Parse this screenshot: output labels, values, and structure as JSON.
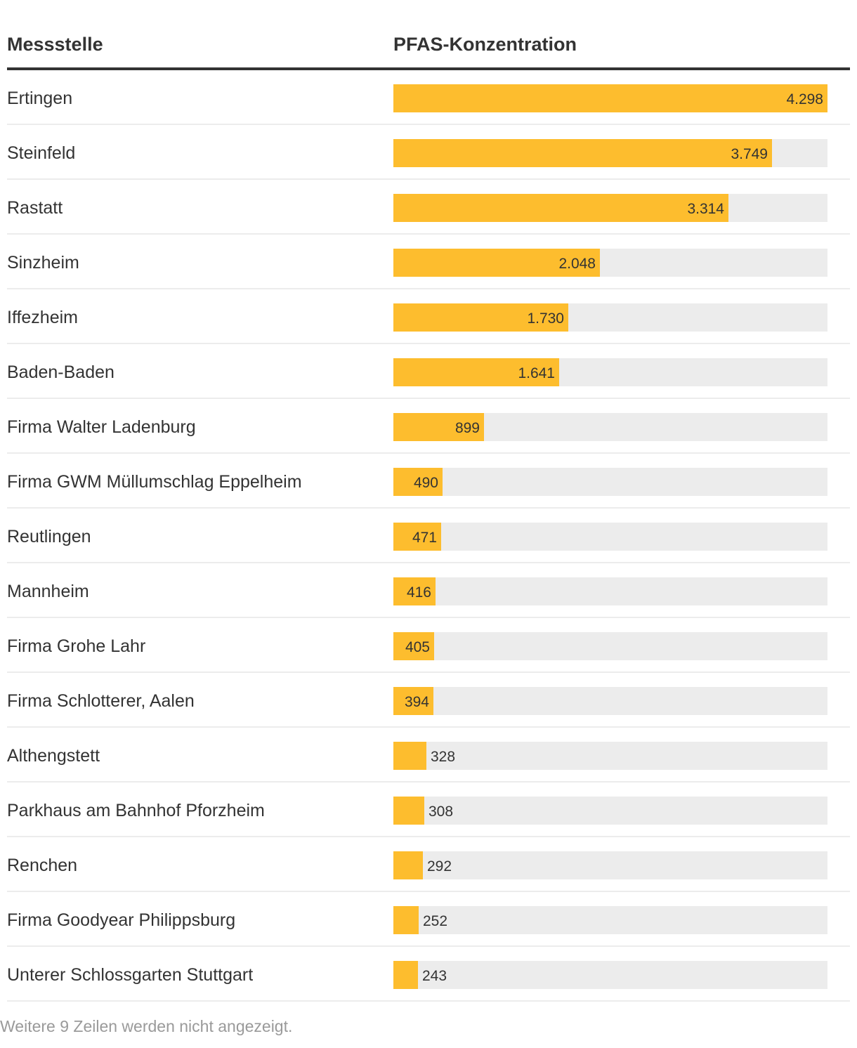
{
  "header": {
    "col_station": "Messstelle",
    "col_value": "PFAS-Konzentration"
  },
  "footer_note": "Weitere 9 Zeilen werden nicht angezeigt.",
  "colors": {
    "bar": "#fdbd2e",
    "track": "#ececec",
    "text": "#333333"
  },
  "chart_data": {
    "type": "bar",
    "orientation": "horizontal",
    "title": "",
    "xlabel": "PFAS-Konzentration",
    "ylabel": "Messstelle",
    "xlim": [
      0,
      4298
    ],
    "categories": [
      "Ertingen",
      "Steinfeld",
      "Rastatt",
      "Sinzheim",
      "Iffezheim",
      "Baden-Baden",
      "Firma Walter Ladenburg",
      "Firma GWM Müllumschlag Eppelheim",
      "Reutlingen",
      "Mannheim",
      "Firma Grohe Lahr",
      "Firma Schlotterer, Aalen",
      "Althengstett",
      "Parkhaus am Bahnhof Pforzheim",
      "Renchen",
      "Firma Goodyear Philippsburg",
      "Unterer Schlossgarten Stuttgart"
    ],
    "values": [
      4298,
      3749,
      3314,
      2048,
      1730,
      1641,
      899,
      490,
      471,
      416,
      405,
      394,
      328,
      308,
      292,
      252,
      243
    ],
    "value_labels": [
      "4.298",
      "3.749",
      "3.314",
      "2.048",
      "1.730",
      "1.641",
      "899",
      "490",
      "471",
      "416",
      "405",
      "394",
      "328",
      "308",
      "292",
      "252",
      "243"
    ]
  }
}
